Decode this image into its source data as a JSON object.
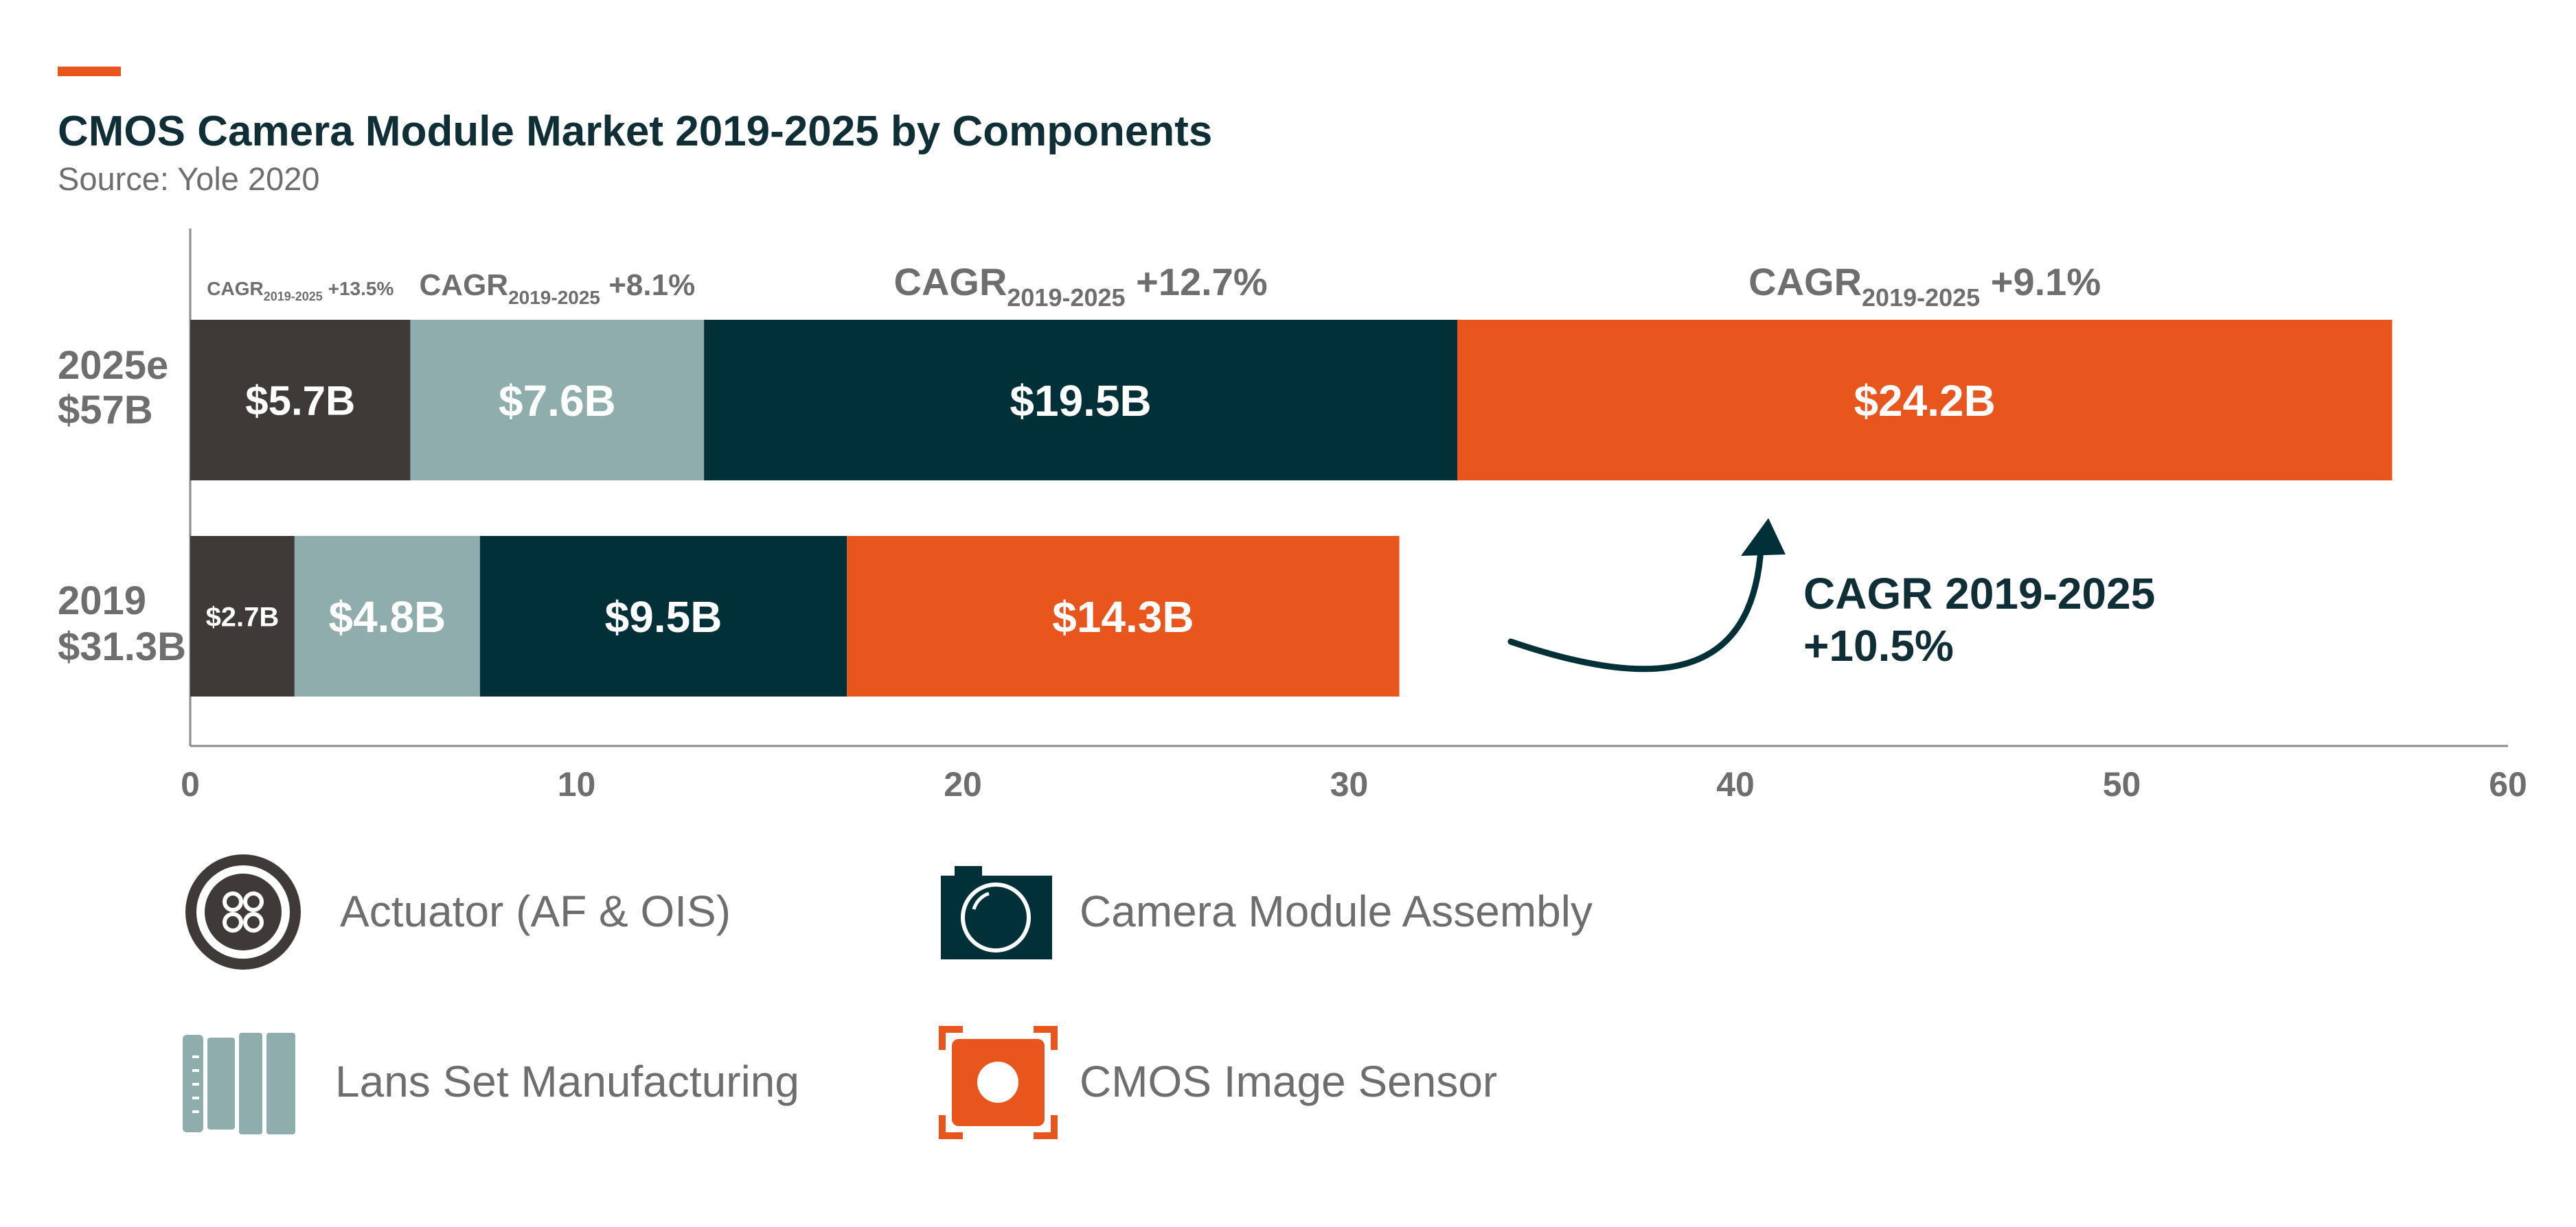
{
  "title": "CMOS Camera Module Market 2019-2025 by Components",
  "source": "Source: Yole 2020",
  "colors": {
    "accent": "#e8561e",
    "actuator": "#3f3a37",
    "lens": "#8eadac",
    "assembly": "#023039",
    "sensor": "#e8561e",
    "text_dark": "#0f2e35",
    "text_grey": "#6e6e6e"
  },
  "chart_data": {
    "type": "bar",
    "orientation": "horizontal",
    "stacked": true,
    "categories": [
      {
        "line1": "2025e",
        "line2": "$57B"
      },
      {
        "line1": "2019",
        "line2": "$31.3B"
      }
    ],
    "series": [
      {
        "name": "Actuator (AF & OIS)",
        "color": "#3f3a37",
        "values": [
          5.7,
          2.7
        ],
        "labels": [
          "$5.7B",
          "$2.7B"
        ],
        "cagr": {
          "prefix": "CAGR",
          "sub": "2019-2025",
          "value": "+13.5%"
        }
      },
      {
        "name": "Lans Set Manufacturing",
        "color": "#8eadac",
        "values": [
          7.6,
          4.8
        ],
        "labels": [
          "$7.6B",
          "$4.8B"
        ],
        "cagr": {
          "prefix": "CAGR",
          "sub": "2019-2025",
          "value": "+8.1%"
        }
      },
      {
        "name": "Camera Module Assembly",
        "color": "#023039",
        "values": [
          19.5,
          9.5
        ],
        "labels": [
          "$19.5B",
          "$9.5B"
        ],
        "cagr": {
          "prefix": "CAGR",
          "sub": "2019-2025",
          "value": "+12.7%"
        }
      },
      {
        "name": "CMOS Image Sensor",
        "color": "#e8561e",
        "values": [
          24.2,
          14.3
        ],
        "labels": [
          "$24.2B",
          "$14.3B"
        ],
        "cagr": {
          "prefix": "CAGR",
          "sub": "2019-2025",
          "value": "+9.1%"
        }
      }
    ],
    "xlim": [
      0,
      60
    ],
    "xticks": [
      "0",
      "10",
      "20",
      "30",
      "40",
      "50",
      "60"
    ],
    "grid": false,
    "legend_position": "bottom",
    "overall_cagr": {
      "line1": "CAGR 2019-2025",
      "line2": "+10.5%"
    }
  },
  "legend": [
    {
      "label": "Actuator (AF & OIS)",
      "icon": "actuator-icon"
    },
    {
      "label": "Camera Module Assembly",
      "icon": "camera-icon"
    },
    {
      "label": "Lans Set Manufacturing",
      "icon": "lens-set-icon"
    },
    {
      "label": "CMOS Image Sensor",
      "icon": "image-sensor-icon"
    }
  ]
}
